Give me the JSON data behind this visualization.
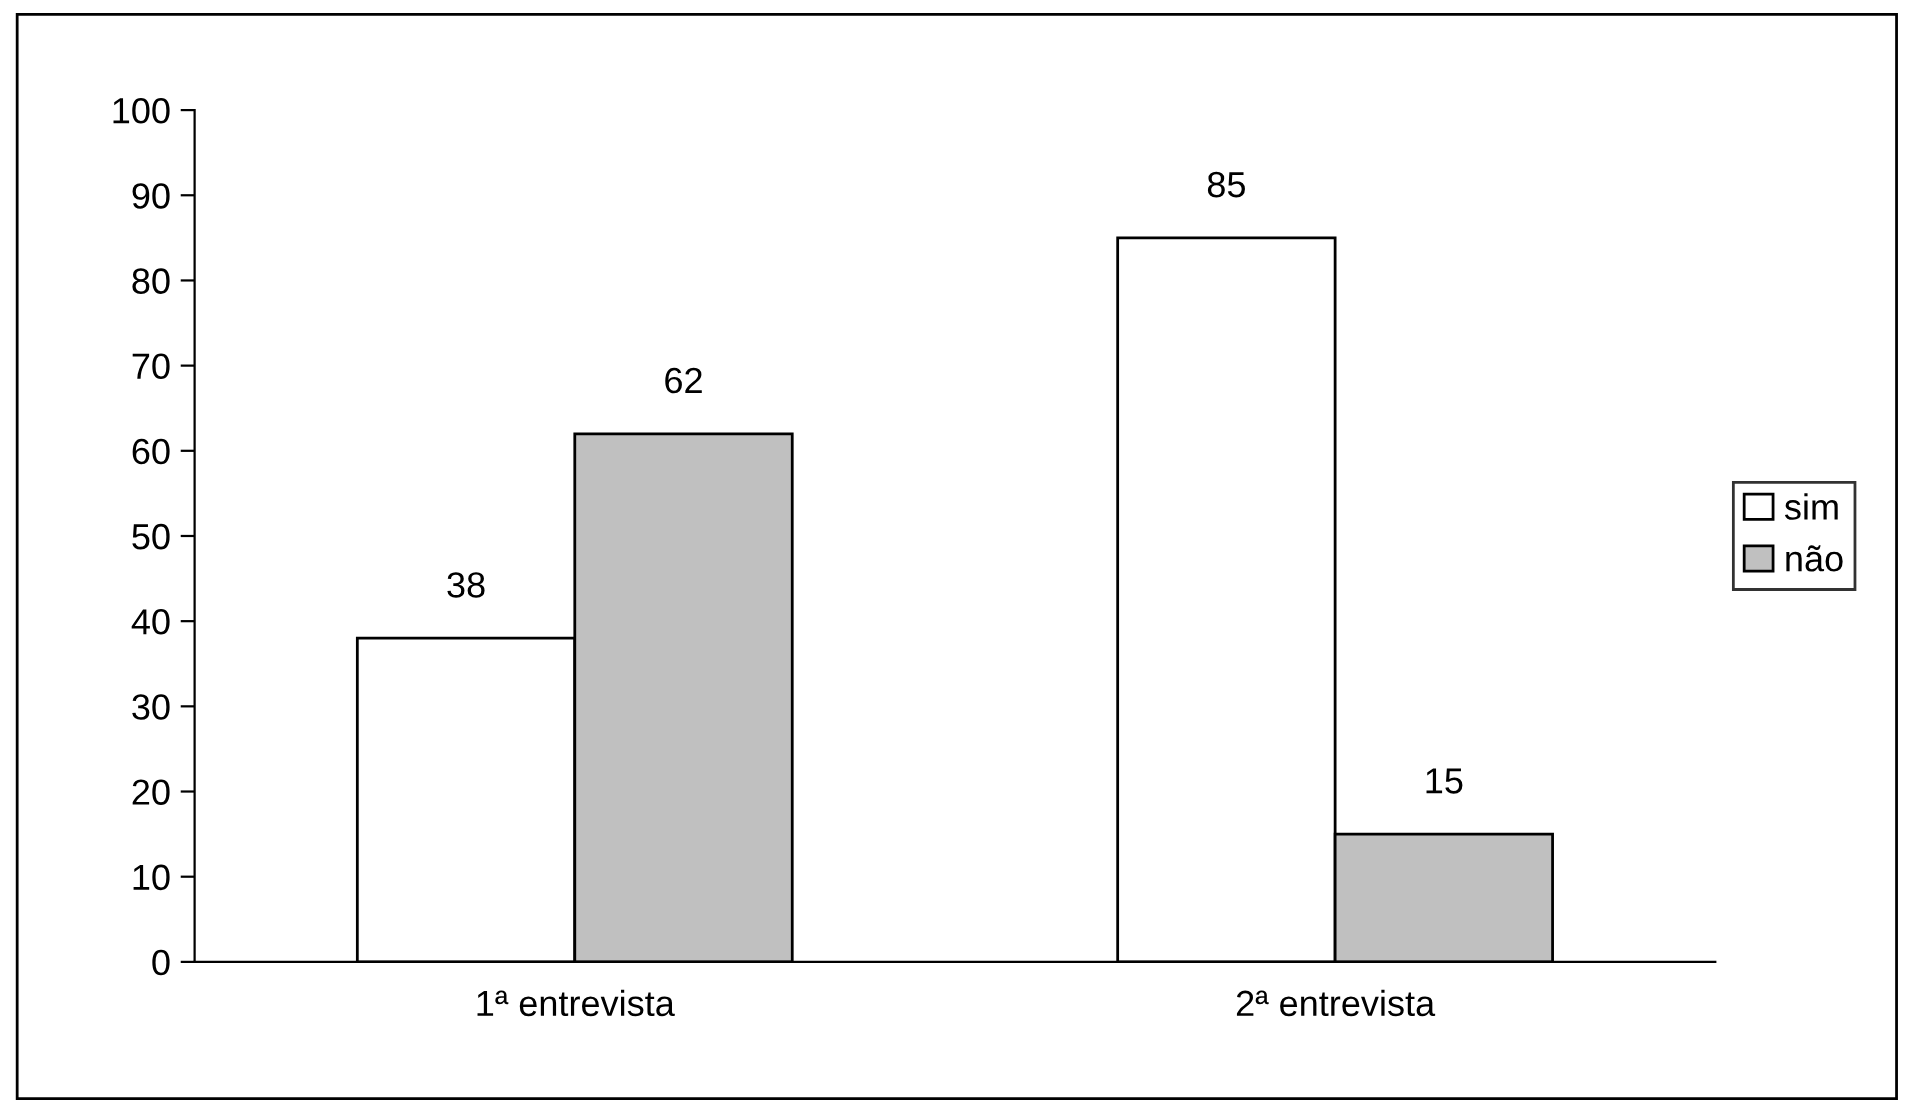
{
  "chart_data": {
    "type": "bar",
    "categories": [
      "1ª entrevista",
      "2ª entrevista"
    ],
    "series": [
      {
        "name": "sim",
        "color": "#ffffff",
        "values": [
          38,
          85
        ]
      },
      {
        "name": "não",
        "color": "#c0c0c0",
        "values": [
          62,
          15
        ]
      }
    ],
    "ylim": [
      0,
      100
    ],
    "yticks": [
      0,
      10,
      20,
      30,
      40,
      50,
      60,
      70,
      80,
      90,
      100
    ],
    "data_labels": true,
    "legend": "right",
    "grid": false
  }
}
